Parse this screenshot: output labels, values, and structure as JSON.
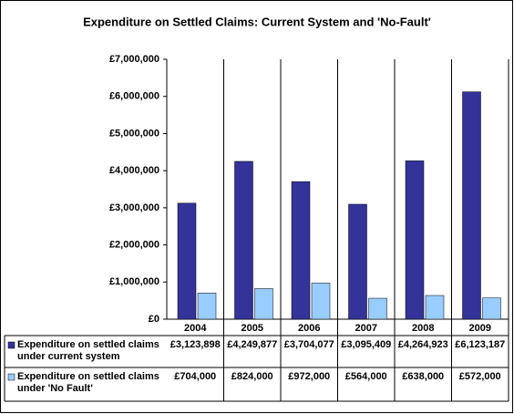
{
  "chart_data": {
    "type": "bar",
    "title": "Expenditure on Settled Claims: Current System and 'No-Fault'",
    "categories": [
      "2004",
      "2005",
      "2006",
      "2007",
      "2008",
      "2009"
    ],
    "series": [
      {
        "name": "Expenditure on settled claims under current system",
        "color": "#333399",
        "values": [
          3123898,
          4249877,
          3704077,
          3095409,
          4264923,
          6123187
        ],
        "value_labels": [
          "£3,123,898",
          "£4,249,877",
          "£3,704,077",
          "£3,095,409",
          "£4,264,923",
          "£6,123,187"
        ]
      },
      {
        "name": "Expenditure on settled claims under 'No Fault'",
        "color": "#99ccff",
        "values": [
          704000,
          824000,
          972000,
          564000,
          638000,
          572000
        ],
        "value_labels": [
          "£704,000",
          "£824,000",
          "£972,000",
          "£564,000",
          "£638,000",
          "£572,000"
        ]
      }
    ],
    "ylim": [
      0,
      7000000
    ],
    "yticks": [
      {
        "value": 0,
        "label": "£0"
      },
      {
        "value": 1000000,
        "label": "£1,000,000"
      },
      {
        "value": 2000000,
        "label": "£2,000,000"
      },
      {
        "value": 3000000,
        "label": "£3,000,000"
      },
      {
        "value": 4000000,
        "label": "£4,000,000"
      },
      {
        "value": 5000000,
        "label": "£5,000,000"
      },
      {
        "value": 6000000,
        "label": "£6,000,000"
      },
      {
        "value": 7000000,
        "label": "£7,000,000"
      }
    ]
  }
}
